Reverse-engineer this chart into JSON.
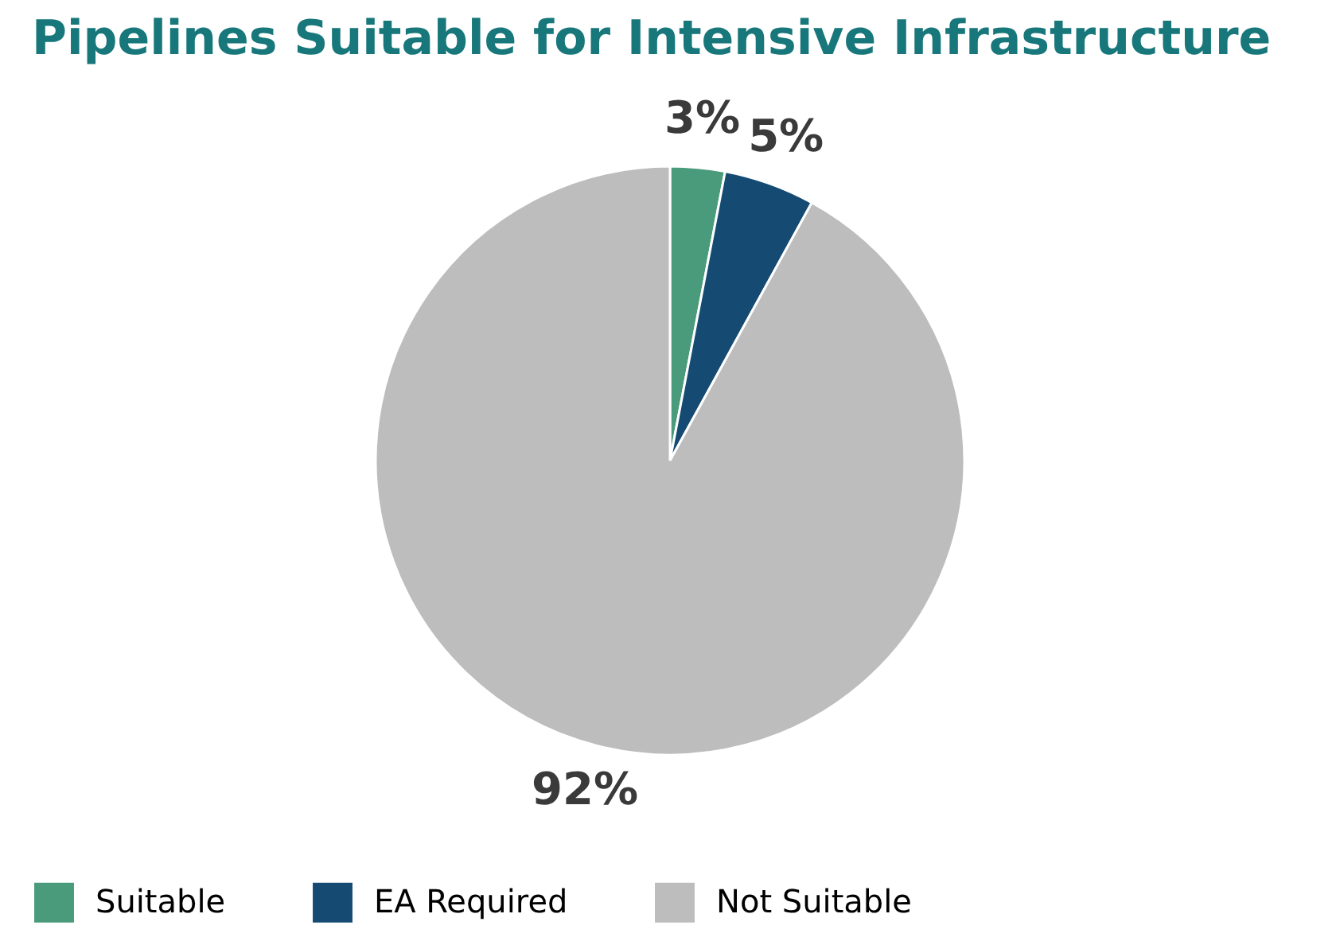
{
  "chart_data": {
    "type": "pie",
    "title": "Pipelines Suitable for Intensive Infrastructure",
    "categories": [
      "Suitable",
      "EA Required",
      "Not Suitable"
    ],
    "values": [
      3,
      5,
      92
    ],
    "colors": [
      "#4a9a7c",
      "#154b72",
      "#bdbdbd"
    ],
    "value_labels": [
      "3%",
      "5%",
      "92%"
    ],
    "legend": "bottom"
  }
}
